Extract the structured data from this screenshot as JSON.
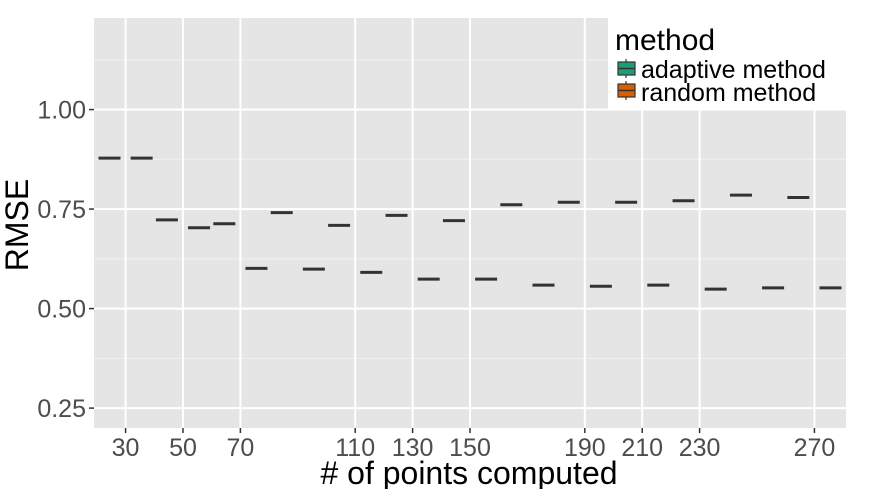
{
  "chart_data": {
    "type": "boxplot",
    "title": "",
    "xlabel": "# of points computed",
    "ylabel": "RMSE",
    "ylim": [
      0.2,
      1.23
    ],
    "y_ticks": [
      0.25,
      0.5,
      0.75,
      1.0
    ],
    "y_tick_labels": [
      "0.25",
      "0.50",
      "0.75",
      "1.00"
    ],
    "x_ticks": [
      30,
      50,
      70,
      110,
      130,
      150,
      190,
      210,
      230,
      270
    ],
    "x_tick_labels": [
      "30",
      "50",
      "70",
      "110",
      "130",
      "150",
      "190",
      "210",
      "230",
      "270"
    ],
    "x_categories": [
      30,
      50,
      70,
      90,
      110,
      130,
      150,
      170,
      190,
      210,
      230,
      250,
      270
    ],
    "grid": true,
    "legend": {
      "title": "method",
      "position": "top-right",
      "entries": [
        "adaptive method",
        "random method"
      ]
    },
    "series": [
      {
        "name": "adaptive method",
        "color": "#1b9e77",
        "x": [
          30,
          50,
          70,
          90,
          110,
          130,
          150,
          170,
          190,
          210,
          230,
          250,
          270
        ],
        "medians": [
          0.878,
          0.723,
          0.713,
          0.741,
          0.709,
          0.734,
          0.721,
          0.761,
          0.767,
          0.767,
          0.771,
          0.785,
          0.779
        ]
      },
      {
        "name": "random method",
        "color": "#d95f02",
        "x": [
          30,
          50,
          70,
          90,
          110,
          130,
          150,
          170,
          190,
          210,
          230,
          250,
          270
        ],
        "medians": [
          0.878,
          0.703,
          0.601,
          0.599,
          0.591,
          0.574,
          0.574,
          0.559,
          0.556,
          0.559,
          0.549,
          0.552,
          0.552
        ]
      }
    ]
  },
  "colors": {
    "panel": "#e5e5e5",
    "grid_major": "#ffffff",
    "median": "#333333"
  }
}
